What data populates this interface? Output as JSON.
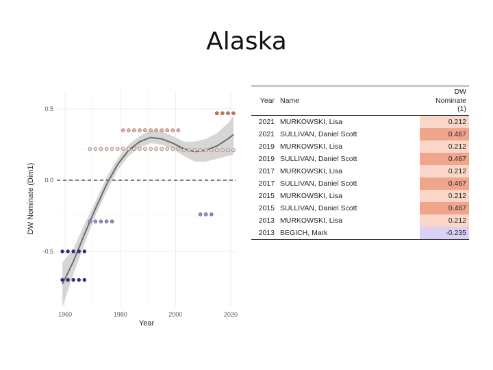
{
  "title": "Alaska",
  "chart_data": {
    "type": "scatter",
    "xlabel": "Year",
    "ylabel": "DW Nominate (Dim1)",
    "xlim": [
      1957,
      2022
    ],
    "ylim": [
      -0.89,
      0.63
    ],
    "xticks": [
      1960,
      1980,
      2000,
      2020
    ],
    "yticks": [
      -0.5,
      0.0,
      0.5
    ],
    "xtick_labels": [
      "1960",
      "1980",
      "2000",
      "2020"
    ],
    "ytick_labels": [
      "-0.5",
      "0.0",
      "0.5"
    ],
    "grid": true,
    "reference_line": 0.0,
    "colors": {
      "dark_blue": "#2b2f8f",
      "light_blue": "#8c8fd6",
      "salmon": "#f4b39b",
      "light_salmon": "#fbd9c9",
      "red": "#d9704f",
      "line": "#6b6b6b",
      "band": "#cfcfcf"
    },
    "series": [
      {
        "color": "dark_blue",
        "points": [
          [
            1959,
            -0.7
          ],
          [
            1961,
            -0.7
          ],
          [
            1963,
            -0.7
          ],
          [
            1965,
            -0.7
          ],
          [
            1967,
            -0.7
          ],
          [
            1959,
            -0.5
          ],
          [
            1961,
            -0.5
          ],
          [
            1963,
            -0.5
          ],
          [
            1965,
            -0.5
          ],
          [
            1967,
            -0.5
          ]
        ]
      },
      {
        "color": "light_blue",
        "points": [
          [
            1969,
            -0.29
          ],
          [
            1971,
            -0.29
          ],
          [
            1973,
            -0.29
          ],
          [
            1975,
            -0.29
          ],
          [
            1977,
            -0.29
          ],
          [
            2009,
            -0.24
          ],
          [
            2011,
            -0.24
          ],
          [
            2013,
            -0.24
          ]
        ]
      },
      {
        "color": "salmon",
        "points": [
          [
            1981,
            0.35
          ],
          [
            1983,
            0.35
          ],
          [
            1985,
            0.35
          ],
          [
            1987,
            0.35
          ],
          [
            1989,
            0.35
          ],
          [
            1991,
            0.35
          ],
          [
            1993,
            0.35
          ],
          [
            1995,
            0.35
          ],
          [
            1997,
            0.35
          ],
          [
            1999,
            0.35
          ],
          [
            2001,
            0.35
          ]
        ]
      },
      {
        "color": "light_salmon",
        "points": [
          [
            1969,
            0.22
          ],
          [
            1971,
            0.22
          ],
          [
            1973,
            0.22
          ],
          [
            1975,
            0.22
          ],
          [
            1977,
            0.22
          ],
          [
            1979,
            0.22
          ],
          [
            1981,
            0.22
          ],
          [
            1983,
            0.22
          ],
          [
            1985,
            0.22
          ],
          [
            1987,
            0.22
          ],
          [
            1989,
            0.22
          ],
          [
            1991,
            0.22
          ],
          [
            1993,
            0.22
          ],
          [
            1995,
            0.22
          ],
          [
            1997,
            0.22
          ],
          [
            1999,
            0.22
          ],
          [
            2001,
            0.22
          ],
          [
            2003,
            0.21
          ],
          [
            2005,
            0.21
          ],
          [
            2007,
            0.21
          ],
          [
            2009,
            0.21
          ],
          [
            2011,
            0.21
          ],
          [
            2013,
            0.21
          ],
          [
            2015,
            0.21
          ],
          [
            2017,
            0.21
          ],
          [
            2019,
            0.21
          ],
          [
            2021,
            0.21
          ]
        ]
      },
      {
        "color": "red",
        "points": [
          [
            2015,
            0.47
          ],
          [
            2017,
            0.47
          ],
          [
            2019,
            0.47
          ],
          [
            2021,
            0.47
          ]
        ]
      }
    ],
    "trend": {
      "x": [
        1959,
        1963,
        1967,
        1971,
        1975,
        1979,
        1983,
        1987,
        1991,
        1995,
        1999,
        2003,
        2007,
        2011,
        2015,
        2019,
        2021
      ],
      "y": [
        -0.73,
        -0.57,
        -0.38,
        -0.2,
        -0.03,
        0.11,
        0.21,
        0.27,
        0.3,
        0.29,
        0.26,
        0.22,
        0.2,
        0.21,
        0.24,
        0.29,
        0.32
      ],
      "lower": [
        -0.89,
        -0.66,
        -0.45,
        -0.25,
        -0.08,
        0.07,
        0.17,
        0.23,
        0.26,
        0.25,
        0.22,
        0.17,
        0.13,
        0.13,
        0.15,
        0.17,
        0.18
      ],
      "upper": [
        -0.58,
        -0.48,
        -0.31,
        -0.15,
        0.02,
        0.15,
        0.25,
        0.31,
        0.35,
        0.34,
        0.31,
        0.27,
        0.27,
        0.29,
        0.33,
        0.4,
        0.45
      ]
    }
  },
  "table": {
    "headers": {
      "year": "Year",
      "name": "Name",
      "dw_lines": [
        "DW",
        "Nominate",
        "(1)"
      ]
    },
    "rows": [
      {
        "year": "2021",
        "name": "MURKOWSKI, Lisa",
        "dw": "0.212",
        "bg": "#f9d6c8"
      },
      {
        "year": "2021",
        "name": "SULLIVAN, Daniel Scott",
        "dw": "0.467",
        "bg": "#f0a68c"
      },
      {
        "year": "2019",
        "name": "MURKOWSKI, Lisa",
        "dw": "0.212",
        "bg": "#f9d6c8"
      },
      {
        "year": "2019",
        "name": "SULLIVAN, Daniel Scott",
        "dw": "0.467",
        "bg": "#f0a68c"
      },
      {
        "year": "2017",
        "name": "MURKOWSKI, Lisa",
        "dw": "0.212",
        "bg": "#f9d6c8"
      },
      {
        "year": "2017",
        "name": "SULLIVAN, Daniel Scott",
        "dw": "0.467",
        "bg": "#f0a68c"
      },
      {
        "year": "2015",
        "name": "MURKOWSKI, Lisa",
        "dw": "0.212",
        "bg": "#f9d6c8"
      },
      {
        "year": "2015",
        "name": "SULLIVAN, Daniel Scott",
        "dw": "0.467",
        "bg": "#f0a68c"
      },
      {
        "year": "2013",
        "name": "MURKOWSKI, Lisa",
        "dw": "0.212",
        "bg": "#f9d6c8"
      },
      {
        "year": "2013",
        "name": "BEGICH, Mark",
        "dw": "-0.235",
        "bg": "#d9d2f5"
      }
    ]
  }
}
